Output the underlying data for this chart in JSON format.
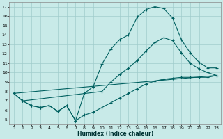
{
  "xlabel": "Humidex (Indice chaleur)",
  "bg_color": "#c8eae8",
  "grid_color": "#a0cccc",
  "line_color": "#006060",
  "xlim": [
    -0.5,
    23.5
  ],
  "ylim": [
    4.5,
    17.5
  ],
  "xticks": [
    0,
    1,
    2,
    3,
    4,
    5,
    6,
    7,
    8,
    9,
    10,
    11,
    12,
    13,
    14,
    15,
    16,
    17,
    18,
    19,
    20,
    21,
    22,
    23
  ],
  "yticks": [
    5,
    6,
    7,
    8,
    9,
    10,
    11,
    12,
    13,
    14,
    15,
    16,
    17
  ],
  "line1_x": [
    0,
    1,
    2,
    3,
    4,
    5,
    6,
    7,
    8,
    9,
    10,
    11,
    12,
    13,
    14,
    15,
    16,
    17,
    18,
    19,
    20,
    21,
    22,
    23
  ],
  "line1_y": [
    7.8,
    7.0,
    6.5,
    6.3,
    6.5,
    5.9,
    6.5,
    4.9,
    7.8,
    8.5,
    10.9,
    12.5,
    13.5,
    14.0,
    15.9,
    16.7,
    17.0,
    16.8,
    15.8,
    13.5,
    12.1,
    11.1,
    10.5,
    10.5
  ],
  "line2_x": [
    0,
    23
  ],
  "line2_y": [
    7.8,
    9.7
  ],
  "line3_x": [
    1,
    10,
    11,
    12,
    13,
    14,
    15,
    16,
    17,
    18,
    19,
    20,
    21,
    22,
    23
  ],
  "line3_y": [
    7.0,
    8.0,
    9.0,
    9.8,
    10.5,
    11.3,
    12.3,
    13.2,
    13.7,
    13.4,
    12.1,
    11.0,
    10.4,
    10.0,
    9.7
  ],
  "line4_x": [
    0,
    1,
    2,
    3,
    4,
    5,
    6,
    7,
    8,
    9,
    10,
    11,
    12,
    13,
    14,
    15,
    16,
    17,
    18,
    19,
    20,
    21,
    22,
    23
  ],
  "line4_y": [
    7.8,
    7.0,
    6.5,
    6.3,
    6.5,
    5.9,
    6.5,
    4.9,
    5.5,
    5.8,
    6.3,
    6.8,
    7.3,
    7.8,
    8.3,
    8.8,
    9.1,
    9.3,
    9.4,
    9.5,
    9.5,
    9.5,
    9.5,
    9.7
  ]
}
